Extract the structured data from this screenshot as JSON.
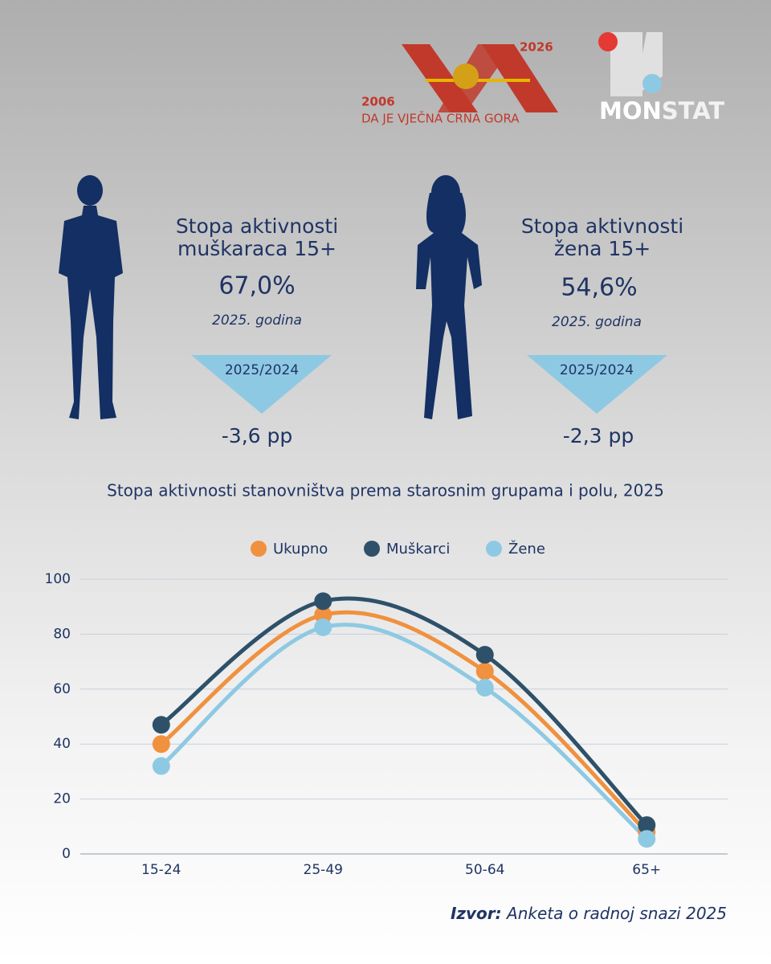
{
  "header": {
    "jubilee_start": "2006",
    "jubilee_end": "2026",
    "motto": "DA JE VJEČNA CRNA GORA",
    "monstat": [
      "MON",
      "STAT"
    ]
  },
  "men": {
    "title_lines": [
      "Stopa aktivnosti",
      "muškaraca 15+"
    ],
    "value": "67,0%",
    "year": "2025. godina",
    "comparison": "2025/2024",
    "change": "-3,6 pp"
  },
  "women": {
    "title_lines": [
      "Stopa aktivnosti",
      "žena 15+"
    ],
    "value": "54,6%",
    "year": "2025. godina",
    "comparison": "2025/2024",
    "change": "-2,3 pp"
  },
  "chart_data": {
    "type": "line",
    "title": "Stopa aktivnosti stanovništva prema starosnim grupama i polu, 2025",
    "categories": [
      "15-24",
      "25-49",
      "50-64",
      "65+"
    ],
    "series": [
      {
        "name": "Ukupno",
        "color": "#f0913f",
        "values": [
          40,
          87,
          66.5,
          8
        ]
      },
      {
        "name": "Muškarci",
        "color": "#2e5169",
        "values": [
          47,
          92,
          72.5,
          10.5
        ]
      },
      {
        "name": "Žene",
        "color": "#8ec9e3",
        "values": [
          32,
          82.5,
          60.5,
          5.5
        ]
      }
    ],
    "ylim": [
      0,
      100
    ],
    "yticks": [
      0,
      20,
      40,
      60,
      80,
      100
    ],
    "grid": true,
    "smooth": true,
    "legend": "top"
  },
  "source": {
    "label": "Izvor:",
    "text": "Anketa o radnoj snazi 2025"
  }
}
